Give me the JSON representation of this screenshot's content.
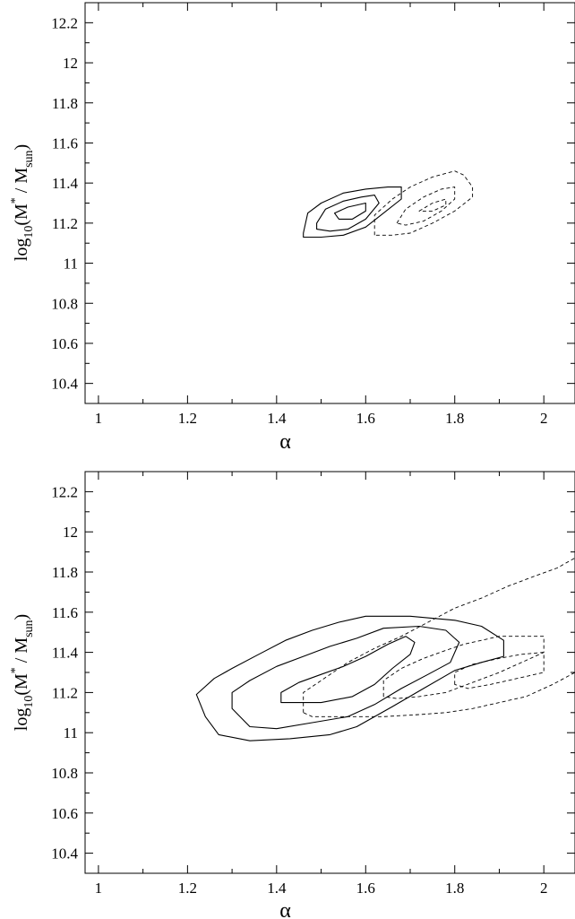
{
  "chart_data": [
    {
      "type": "contour",
      "xlabel": "α",
      "ylabel": {
        "base": "log",
        "sub1": "10",
        "open": "(M",
        "sup": "*",
        "mid": " / M",
        "sub2": "sun",
        "close": ")"
      },
      "xlim": [
        0.97,
        2.07
      ],
      "ylim": [
        10.3,
        12.3
      ],
      "xticks": [
        1,
        1.2,
        1.4,
        1.6,
        1.8,
        2
      ],
      "yticks": [
        10.4,
        10.6,
        10.8,
        11,
        11.2,
        11.4,
        11.6,
        11.8,
        12,
        12.2
      ],
      "series": [
        {
          "style": "solid",
          "contours": [
            [
              [
                1.46,
                11.15
              ],
              [
                1.47,
                11.25
              ],
              [
                1.5,
                11.3
              ],
              [
                1.55,
                11.35
              ],
              [
                1.6,
                11.37
              ],
              [
                1.65,
                11.38
              ],
              [
                1.68,
                11.38
              ],
              [
                1.68,
                11.32
              ],
              [
                1.64,
                11.25
              ],
              [
                1.6,
                11.18
              ],
              [
                1.55,
                11.14
              ],
              [
                1.5,
                11.13
              ],
              [
                1.46,
                11.13
              ]
            ],
            [
              [
                1.49,
                11.2
              ],
              [
                1.51,
                11.27
              ],
              [
                1.55,
                11.31
              ],
              [
                1.59,
                11.33
              ],
              [
                1.62,
                11.34
              ],
              [
                1.63,
                11.3
              ],
              [
                1.6,
                11.22
              ],
              [
                1.56,
                11.17
              ],
              [
                1.52,
                11.16
              ],
              [
                1.49,
                11.17
              ]
            ],
            [
              [
                1.53,
                11.25
              ],
              [
                1.56,
                11.28
              ],
              [
                1.6,
                11.3
              ],
              [
                1.6,
                11.26
              ],
              [
                1.57,
                11.22
              ],
              [
                1.54,
                11.22
              ]
            ]
          ]
        },
        {
          "style": "dashed",
          "contours": [
            [
              [
                1.62,
                11.14
              ],
              [
                1.62,
                11.24
              ],
              [
                1.66,
                11.32
              ],
              [
                1.7,
                11.38
              ],
              [
                1.75,
                11.43
              ],
              [
                1.8,
                11.46
              ],
              [
                1.82,
                11.44
              ],
              [
                1.84,
                11.38
              ],
              [
                1.84,
                11.33
              ],
              [
                1.8,
                11.26
              ],
              [
                1.75,
                11.2
              ],
              [
                1.7,
                11.15
              ],
              [
                1.66,
                11.14
              ]
            ],
            [
              [
                1.67,
                11.2
              ],
              [
                1.69,
                11.27
              ],
              [
                1.73,
                11.33
              ],
              [
                1.77,
                11.37
              ],
              [
                1.8,
                11.38
              ],
              [
                1.8,
                11.32
              ],
              [
                1.77,
                11.26
              ],
              [
                1.73,
                11.21
              ],
              [
                1.69,
                11.19
              ]
            ],
            [
              [
                1.72,
                11.26
              ],
              [
                1.75,
                11.3
              ],
              [
                1.78,
                11.32
              ],
              [
                1.78,
                11.29
              ],
              [
                1.75,
                11.26
              ]
            ]
          ]
        }
      ]
    },
    {
      "type": "contour",
      "xlabel": "α",
      "ylabel": {
        "base": "log",
        "sub1": "10",
        "open": "(M",
        "sup": "*",
        "mid": " / M",
        "sub2": "sun",
        "close": ")"
      },
      "xlim": [
        0.97,
        2.07
      ],
      "ylim": [
        10.3,
        12.3
      ],
      "xticks": [
        1,
        1.2,
        1.4,
        1.6,
        1.8,
        2
      ],
      "yticks": [
        10.4,
        10.6,
        10.8,
        11,
        11.2,
        11.4,
        11.6,
        11.8,
        12,
        12.2
      ],
      "series": [
        {
          "style": "solid",
          "contours": [
            [
              [
                1.22,
                11.19
              ],
              [
                1.26,
                11.27
              ],
              [
                1.3,
                11.32
              ],
              [
                1.36,
                11.39
              ],
              [
                1.42,
                11.46
              ],
              [
                1.48,
                11.51
              ],
              [
                1.54,
                11.55
              ],
              [
                1.6,
                11.58
              ],
              [
                1.7,
                11.58
              ],
              [
                1.8,
                11.56
              ],
              [
                1.86,
                11.53
              ],
              [
                1.91,
                11.46
              ],
              [
                1.91,
                11.38
              ],
              [
                1.86,
                11.35
              ],
              [
                1.8,
                11.31
              ],
              [
                1.73,
                11.22
              ],
              [
                1.66,
                11.13
              ],
              [
                1.58,
                11.03
              ],
              [
                1.52,
                10.99
              ],
              [
                1.43,
                10.97
              ],
              [
                1.34,
                10.96
              ],
              [
                1.27,
                10.99
              ],
              [
                1.24,
                11.08
              ]
            ],
            [
              [
                1.3,
                11.12
              ],
              [
                1.3,
                11.2
              ],
              [
                1.34,
                11.26
              ],
              [
                1.4,
                11.33
              ],
              [
                1.46,
                11.38
              ],
              [
                1.52,
                11.43
              ],
              [
                1.58,
                11.47
              ],
              [
                1.64,
                11.52
              ],
              [
                1.72,
                11.53
              ],
              [
                1.78,
                11.51
              ],
              [
                1.81,
                11.45
              ],
              [
                1.79,
                11.35
              ],
              [
                1.74,
                11.29
              ],
              [
                1.68,
                11.22
              ],
              [
                1.62,
                11.14
              ],
              [
                1.56,
                11.08
              ],
              [
                1.48,
                11.05
              ],
              [
                1.4,
                11.02
              ],
              [
                1.34,
                11.03
              ]
            ],
            [
              [
                1.41,
                11.15
              ],
              [
                1.41,
                11.2
              ],
              [
                1.45,
                11.25
              ],
              [
                1.5,
                11.29
              ],
              [
                1.55,
                11.33
              ],
              [
                1.6,
                11.38
              ],
              [
                1.65,
                11.44
              ],
              [
                1.69,
                11.48
              ],
              [
                1.71,
                11.45
              ],
              [
                1.7,
                11.39
              ],
              [
                1.66,
                11.32
              ],
              [
                1.62,
                11.24
              ],
              [
                1.57,
                11.18
              ],
              [
                1.5,
                11.15
              ],
              [
                1.44,
                11.15
              ]
            ]
          ]
        },
        {
          "style": "dashed",
          "contours": [
            [
              [
                1.46,
                11.1
              ],
              [
                1.46,
                11.2
              ],
              [
                1.5,
                11.26
              ],
              [
                1.56,
                11.35
              ],
              [
                1.62,
                11.42
              ],
              [
                1.68,
                11.48
              ],
              [
                1.74,
                11.55
              ],
              [
                1.8,
                11.62
              ],
              [
                1.86,
                11.67
              ],
              [
                1.92,
                11.73
              ],
              [
                1.98,
                11.78
              ],
              [
                2.03,
                11.82
              ],
              [
                2.07,
                11.87
              ],
              [
                2.07,
                11.3
              ],
              [
                2.02,
                11.24
              ],
              [
                1.96,
                11.18
              ],
              [
                1.9,
                11.15
              ],
              [
                1.84,
                11.12
              ],
              [
                1.78,
                11.1
              ],
              [
                1.72,
                11.09
              ],
              [
                1.64,
                11.08
              ],
              [
                1.55,
                11.08
              ],
              [
                1.48,
                11.08
              ]
            ],
            [
              [
                1.64,
                11.18
              ],
              [
                1.64,
                11.26
              ],
              [
                1.68,
                11.32
              ],
              [
                1.73,
                11.37
              ],
              [
                1.78,
                11.41
              ],
              [
                1.82,
                11.44
              ],
              [
                1.86,
                11.46
              ],
              [
                1.9,
                11.48
              ],
              [
                1.96,
                11.48
              ],
              [
                2,
                11.48
              ],
              [
                2,
                11.4
              ],
              [
                1.96,
                11.36
              ],
              [
                1.9,
                11.3
              ],
              [
                1.84,
                11.25
              ],
              [
                1.78,
                11.2
              ],
              [
                1.72,
                11.18
              ],
              [
                1.67,
                11.17
              ]
            ],
            [
              [
                1.8,
                11.24
              ],
              [
                1.8,
                11.3
              ],
              [
                1.84,
                11.34
              ],
              [
                1.9,
                11.37
              ],
              [
                1.95,
                11.39
              ],
              [
                2.0,
                11.4
              ],
              [
                2.0,
                11.3
              ],
              [
                1.94,
                11.27
              ],
              [
                1.88,
                11.24
              ],
              [
                1.83,
                11.22
              ]
            ]
          ]
        }
      ]
    }
  ]
}
